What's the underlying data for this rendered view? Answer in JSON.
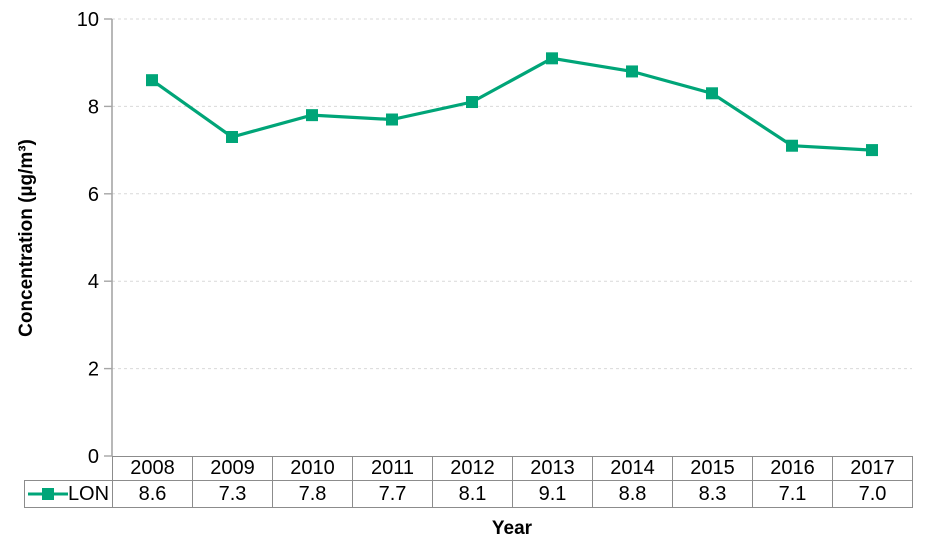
{
  "chart_data": {
    "type": "line",
    "title": "",
    "xlabel": "Year",
    "ylabel": "Concentration (µg/m³)",
    "categories": [
      "2008",
      "2009",
      "2010",
      "2011",
      "2012",
      "2013",
      "2014",
      "2015",
      "2016",
      "2017"
    ],
    "series": [
      {
        "name": "LON",
        "values": [
          8.6,
          7.3,
          7.8,
          7.7,
          8.1,
          9.1,
          8.8,
          8.3,
          7.1,
          7.0
        ],
        "color": "#00a578",
        "marker": "square"
      }
    ],
    "ylim": [
      0,
      10
    ],
    "ytick_step": 2,
    "grid": "horizontal-dashed",
    "legend_position": "data-table-row-header",
    "data_table_shown": true
  },
  "colors": {
    "series": "#00a578",
    "gridline": "#d9d9d9",
    "axis": "#a6a6a6",
    "table_border": "#8c8c8c",
    "text": "#000000"
  }
}
